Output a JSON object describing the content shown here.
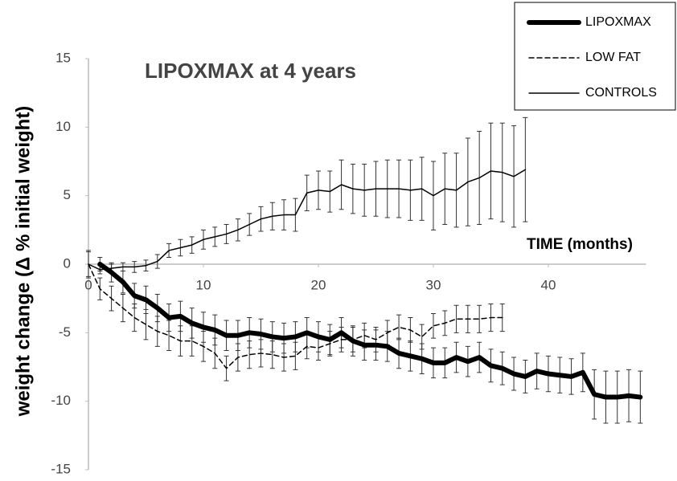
{
  "chart_data": {
    "type": "line",
    "title": "LIPOXMAX at 4 years",
    "x_label": "TIME (months)",
    "y_label": "weight change (Δ % initial weight)",
    "xlim": [
      0,
      48.5
    ],
    "ylim": [
      -15,
      15
    ],
    "xticks": [
      0,
      10,
      20,
      30,
      40
    ],
    "yticks": [
      -15,
      -10,
      -5,
      0,
      5,
      10,
      15
    ],
    "legend": "top-right",
    "series": [
      {
        "name": "LIPOXMAX",
        "color": "#000000",
        "line_width": 6,
        "dashed": false,
        "x": [
          1,
          2,
          3,
          4,
          5,
          6,
          7,
          8,
          9,
          10,
          11,
          12,
          13,
          14,
          15,
          16,
          17,
          18,
          19,
          20,
          21,
          22,
          23,
          24,
          25,
          26,
          27,
          28,
          29,
          30,
          31,
          32,
          33,
          34,
          35,
          36,
          37,
          38,
          39,
          40,
          41,
          42,
          43,
          44,
          45,
          46,
          47,
          48
        ],
        "values": [
          0,
          -0.6,
          -1.3,
          -2.3,
          -2.6,
          -3.2,
          -3.9,
          -3.8,
          -4.3,
          -4.6,
          -4.8,
          -5.2,
          -5.2,
          -5.0,
          -5.1,
          -5.3,
          -5.4,
          -5.3,
          -5.0,
          -5.3,
          -5.5,
          -5.0,
          -5.6,
          -5.9,
          -5.9,
          -6.0,
          -6.5,
          -6.7,
          -6.9,
          -7.2,
          -7.2,
          -6.8,
          -7.1,
          -6.8,
          -7.4,
          -7.6,
          -8.0,
          -8.2,
          -7.8,
          -8.0,
          -8.1,
          -8.2,
          -7.9,
          -9.5,
          -9.7,
          -9.7,
          -9.6,
          -9.7
        ],
        "errors": [
          0.5,
          0.7,
          0.8,
          0.9,
          1.0,
          1.0,
          1.0,
          1.1,
          1.1,
          1.1,
          1.1,
          1.1,
          1.1,
          1.1,
          1.1,
          1.1,
          1.1,
          1.1,
          1.1,
          1.1,
          1.1,
          1.1,
          1.1,
          1.1,
          1.1,
          1.1,
          1.1,
          1.1,
          1.1,
          1.1,
          1.1,
          1.1,
          1.1,
          1.1,
          1.2,
          1.2,
          1.2,
          1.2,
          1.3,
          1.3,
          1.3,
          1.3,
          1.4,
          1.8,
          1.9,
          1.9,
          1.9,
          1.9
        ]
      },
      {
        "name": "LOW FAT",
        "color": "#000000",
        "line_width": 1.5,
        "dashed": true,
        "x": [
          0,
          1,
          2,
          3,
          4,
          5,
          6,
          7,
          8,
          9,
          10,
          11,
          12,
          13,
          14,
          15,
          16,
          17,
          18,
          19,
          20,
          21,
          22,
          23,
          24,
          25,
          26,
          27,
          28,
          29,
          30,
          31,
          32,
          33,
          34,
          35,
          36
        ],
        "values": [
          0,
          -1.8,
          -2.5,
          -3.2,
          -3.9,
          -4.4,
          -4.9,
          -5.2,
          -5.6,
          -5.6,
          -6.0,
          -6.5,
          -7.6,
          -6.8,
          -6.6,
          -6.5,
          -6.6,
          -6.8,
          -6.7,
          -6.0,
          -6.1,
          -5.8,
          -5.5,
          -5.5,
          -5.2,
          -5.5,
          -5.0,
          -4.6,
          -4.8,
          -5.3,
          -4.5,
          -4.3,
          -4.0,
          -4.0,
          -4.0,
          -3.9,
          -3.9
        ],
        "errors": [
          1.0,
          0.8,
          0.9,
          1.0,
          1.0,
          1.1,
          1.1,
          1.1,
          1.1,
          1.1,
          1.1,
          1.1,
          0.9,
          1.0,
          1.0,
          1.0,
          1.0,
          1.0,
          1.0,
          0.9,
          0.9,
          0.9,
          0.9,
          0.9,
          0.9,
          0.9,
          0.9,
          0.9,
          0.9,
          0.9,
          0.9,
          0.9,
          1.0,
          1.0,
          1.0,
          1.0,
          1.0
        ]
      },
      {
        "name": "CONTROLS",
        "color": "#000000",
        "line_width": 1.5,
        "dashed": false,
        "x": [
          0,
          1,
          2,
          3,
          4,
          5,
          6,
          7,
          8,
          9,
          10,
          11,
          12,
          13,
          14,
          15,
          16,
          17,
          18,
          19,
          20,
          21,
          22,
          23,
          24,
          25,
          26,
          27,
          28,
          29,
          30,
          31,
          32,
          33,
          34,
          35,
          36,
          37,
          38
        ],
        "values": [
          0,
          -0.4,
          -0.3,
          -0.2,
          -0.2,
          -0.1,
          0.2,
          1.0,
          1.2,
          1.4,
          1.8,
          2.0,
          2.2,
          2.5,
          2.9,
          3.3,
          3.5,
          3.6,
          3.6,
          5.2,
          5.4,
          5.3,
          5.8,
          5.5,
          5.4,
          5.5,
          5.5,
          5.5,
          5.4,
          5.5,
          5.0,
          5.5,
          5.4,
          6.0,
          6.3,
          6.8,
          6.7,
          6.4,
          6.9
        ],
        "errors": [
          0.9,
          0.3,
          0.3,
          0.3,
          0.4,
          0.4,
          0.5,
          0.5,
          0.6,
          0.6,
          0.7,
          0.7,
          0.7,
          0.8,
          0.8,
          0.9,
          1.0,
          1.1,
          1.2,
          1.3,
          1.4,
          1.5,
          1.8,
          1.8,
          1.9,
          2.0,
          2.1,
          2.1,
          2.2,
          2.3,
          2.5,
          2.6,
          2.7,
          3.2,
          3.4,
          3.5,
          3.6,
          3.7,
          3.8
        ]
      }
    ]
  }
}
